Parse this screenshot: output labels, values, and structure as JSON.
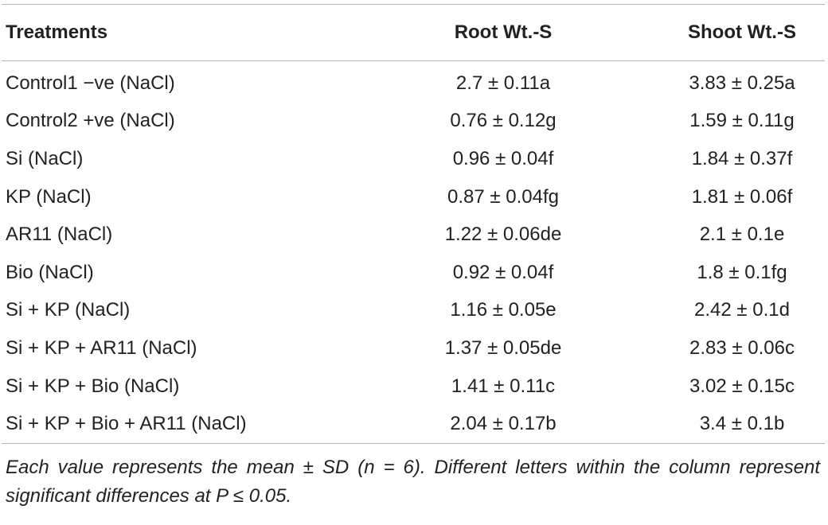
{
  "table": {
    "headers": {
      "treatments": "Treatments",
      "root": "Root Wt.-S",
      "shoot": "Shoot Wt.-S"
    },
    "rows": [
      {
        "treatment": "Control1 −ve (NaCl)",
        "root": "2.7 ± 0.11a",
        "shoot": "3.83 ± 0.25a"
      },
      {
        "treatment": "Control2 +ve (NaCl)",
        "root": "0.76 ± 0.12g",
        "shoot": "1.59 ± 0.11g"
      },
      {
        "treatment": "Si (NaCl)",
        "root": "0.96 ± 0.04f",
        "shoot": "1.84 ± 0.37f"
      },
      {
        "treatment": "KP (NaCl)",
        "root": "0.87 ± 0.04fg",
        "shoot": "1.81 ± 0.06f"
      },
      {
        "treatment": "AR11 (NaCl)",
        "root": "1.22 ± 0.06de",
        "shoot": "2.1 ± 0.1e"
      },
      {
        "treatment": "Bio (NaCl)",
        "root": "0.92 ± 0.04f",
        "shoot": "1.8 ± 0.1fg"
      },
      {
        "treatment": "Si + KP (NaCl)",
        "root": "1.16 ± 0.05e",
        "shoot": "2.42 ± 0.1d"
      },
      {
        "treatment": "Si + KP + AR11 (NaCl)",
        "root": "1.37 ± 0.05de",
        "shoot": "2.83 ± 0.06c"
      },
      {
        "treatment": "Si + KP + Bio (NaCl)",
        "root": "1.41 ± 0.11c",
        "shoot": "3.02 ± 0.15c"
      },
      {
        "treatment": "Si + KP + Bio + AR11 (NaCl)",
        "root": "2.04 ± 0.17b",
        "shoot": "3.4 ± 0.1b"
      }
    ]
  },
  "footnote": "Each value represents the mean ± SD (n = 6). Different letters within the column represent significant differences at P ≤ 0.05."
}
